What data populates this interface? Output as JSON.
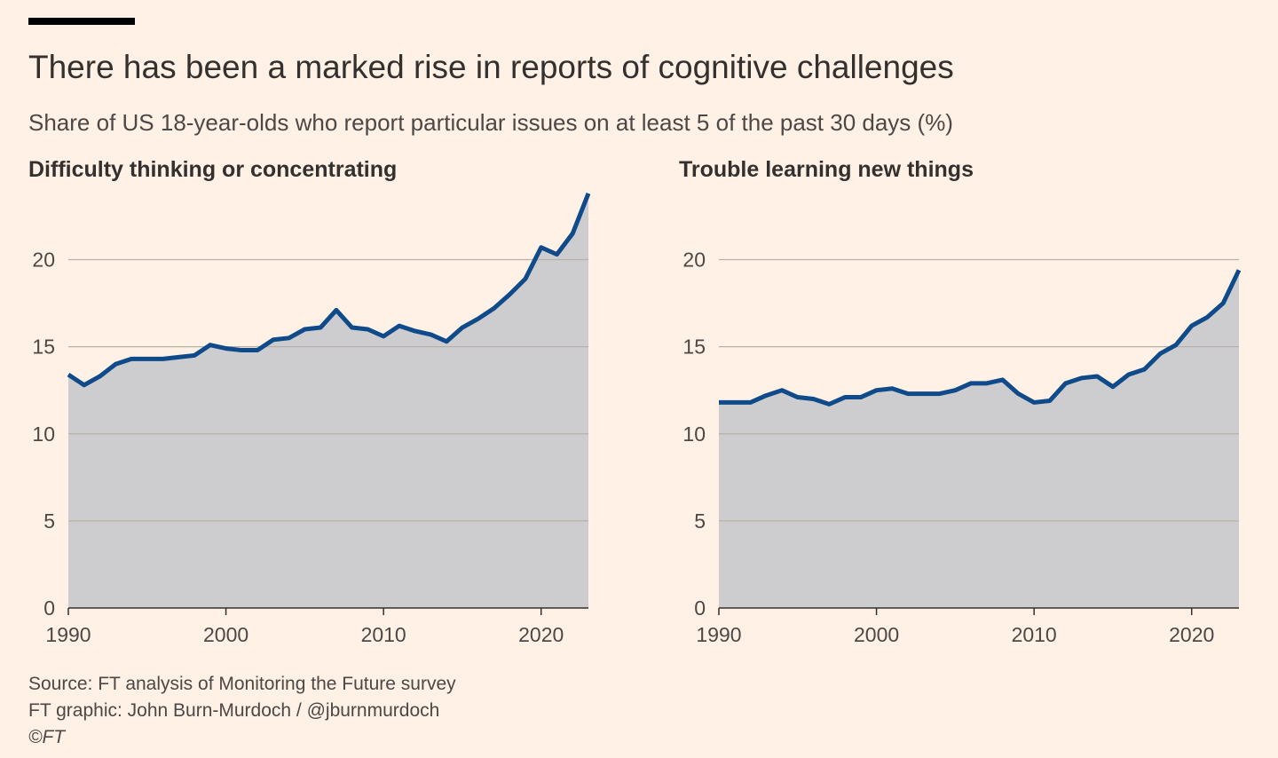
{
  "title": "There has been a marked rise in reports of cognitive challenges",
  "subtitle": "Share of US 18-year-olds who report particular issues on at least 5 of the past 30 days (%)",
  "footer": {
    "source": "Source: FT analysis of Monitoring the Future survey",
    "credit": "FT graphic: John Burn-Murdoch / @jburnmurdoch",
    "copyright": "©FT"
  },
  "colors": {
    "background": "#fff1e5",
    "line": "#0f4b8a",
    "area": "#cdcdcf",
    "gridline": "#b7b1aa",
    "axis": "#33302e",
    "text": "#33302e"
  },
  "chart_data": [
    {
      "type": "area",
      "title": "Difficulty thinking or concentrating",
      "x": [
        1990,
        1991,
        1992,
        1993,
        1994,
        1995,
        1996,
        1997,
        1998,
        1999,
        2000,
        2001,
        2002,
        2003,
        2004,
        2005,
        2006,
        2007,
        2008,
        2009,
        2010,
        2011,
        2012,
        2013,
        2014,
        2015,
        2016,
        2017,
        2018,
        2019,
        2020,
        2021,
        2022,
        2023
      ],
      "values": [
        13.4,
        12.8,
        13.3,
        14.0,
        14.3,
        14.3,
        14.3,
        14.4,
        14.5,
        15.1,
        14.9,
        14.8,
        14.8,
        15.4,
        15.5,
        16.0,
        16.1,
        17.1,
        16.1,
        16.0,
        15.6,
        16.2,
        15.9,
        15.7,
        15.3,
        16.1,
        16.6,
        17.2,
        18.0,
        18.9,
        20.7,
        20.3,
        21.5,
        23.8
      ],
      "xlim": [
        1990,
        2023
      ],
      "ylim": [
        0,
        24
      ],
      "xticks": [
        1990,
        2000,
        2010,
        2020
      ],
      "yticks": [
        0,
        5,
        10,
        15,
        20
      ],
      "xlabel": "",
      "ylabel": "",
      "grid": true
    },
    {
      "type": "area",
      "title": "Trouble learning new things",
      "x": [
        1990,
        1991,
        1992,
        1993,
        1994,
        1995,
        1996,
        1997,
        1998,
        1999,
        2000,
        2001,
        2002,
        2003,
        2004,
        2005,
        2006,
        2007,
        2008,
        2009,
        2010,
        2011,
        2012,
        2013,
        2014,
        2015,
        2016,
        2017,
        2018,
        2019,
        2020,
        2021,
        2022,
        2023
      ],
      "values": [
        11.8,
        11.8,
        11.8,
        12.2,
        12.5,
        12.1,
        12.0,
        11.7,
        12.1,
        12.1,
        12.5,
        12.6,
        12.3,
        12.3,
        12.3,
        12.5,
        12.9,
        12.9,
        13.1,
        12.3,
        11.8,
        11.9,
        12.9,
        13.2,
        13.3,
        12.7,
        13.4,
        13.7,
        14.6,
        15.1,
        16.2,
        16.7,
        17.5,
        19.4
      ],
      "xlim": [
        1990,
        2023
      ],
      "ylim": [
        0,
        24
      ],
      "xticks": [
        1990,
        2000,
        2010,
        2020
      ],
      "yticks": [
        0,
        5,
        10,
        15,
        20
      ],
      "xlabel": "",
      "ylabel": "",
      "grid": true
    }
  ]
}
